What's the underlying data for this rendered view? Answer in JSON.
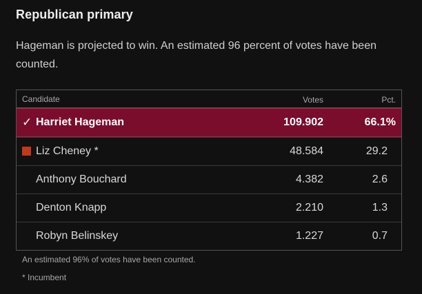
{
  "race": {
    "title": "Republican primary",
    "summary": "Hageman is projected to win. An estimated 96 percent of votes have been counted."
  },
  "table": {
    "headers": {
      "candidate": "Candidate",
      "votes": "Votes",
      "pct": "Pct."
    },
    "rows": [
      {
        "name": "Harriet Hageman",
        "votes": "109.902",
        "pct": "66.1%",
        "winner": true,
        "check": "✓"
      },
      {
        "name": "Liz Cheney *",
        "votes": "48.584",
        "pct": "29.2",
        "marker_color": "#c0391b"
      },
      {
        "name": "Anthony Bouchard",
        "votes": "4.382",
        "pct": "2.6"
      },
      {
        "name": "Denton Knapp",
        "votes": "2.210",
        "pct": "1.3"
      },
      {
        "name": "Robyn Belinskey",
        "votes": "1.227",
        "pct": "0.7"
      }
    ]
  },
  "footer": {
    "counted_note": "An estimated 96% of votes have been counted.",
    "incumbent_note": "* Incumbent"
  },
  "colors": {
    "winner_row": "#7a0d2b",
    "background": "#111111"
  },
  "icons": {
    "winner": "check-icon",
    "incumbent_marker": "square-marker-icon"
  }
}
